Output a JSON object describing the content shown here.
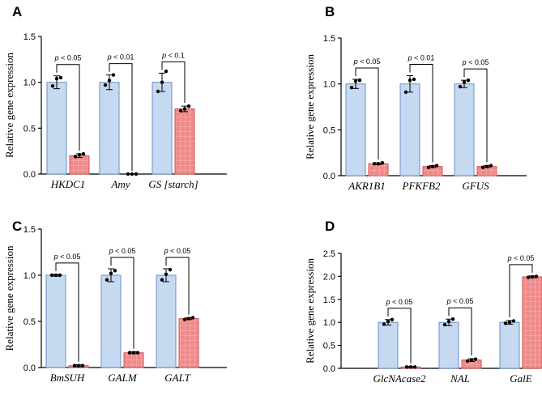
{
  "colors": {
    "control": "#c5d9f1",
    "control_edge": "#6c8fc7",
    "treated": "#f08a8a",
    "treated_edge": "#d9534f",
    "treated_grid": "#f8caca",
    "axis": "#000000",
    "bracket": "#000000"
  },
  "chart_data": [
    {
      "type": "bar",
      "panel": "A",
      "ylabel": "Relative gene expression",
      "ylim": [
        0,
        1.5
      ],
      "yticks": [
        "0.0",
        "0.5",
        "1.0",
        "1.5"
      ],
      "categories": [
        "HKDC1",
        "Amy",
        "GS [starch]"
      ],
      "series": [
        {
          "values": [
            1.0,
            1.0,
            1.0
          ],
          "errors": [
            0.07,
            0.08,
            0.1
          ],
          "points": [
            [
              0.96,
              1.04,
              1.05
            ],
            [
              0.97,
              1.02,
              1.08
            ],
            [
              0.9,
              1.0,
              1.12
            ]
          ]
        },
        {
          "values": [
            0.2,
            0.0,
            0.71
          ],
          "errors": [
            0.02,
            0.0,
            0.03
          ],
          "points": [
            [
              0.19,
              0.21,
              0.22
            ],
            [
              0.0,
              0.0,
              0.0
            ],
            [
              0.69,
              0.71,
              0.74
            ]
          ]
        }
      ],
      "annotations": [
        {
          "p": "p",
          "text": " < 0.05"
        },
        {
          "p": "p",
          "text": " < 0.01"
        },
        {
          "p": "p",
          "text": " < 0.1"
        }
      ]
    },
    {
      "type": "bar",
      "panel": "B",
      "ylabel": "Relative gene expression",
      "ylim": [
        0,
        1.5
      ],
      "yticks": [
        "0.0",
        "0.5",
        "1.0",
        "1.5"
      ],
      "categories": [
        "AKR1B1",
        "PFKFB2",
        "GFUS"
      ],
      "series": [
        {
          "values": [
            1.0,
            1.0,
            1.0
          ],
          "errors": [
            0.05,
            0.09,
            0.04
          ],
          "points": [
            [
              0.96,
              1.03,
              1.04
            ],
            [
              0.91,
              1.04,
              1.05
            ],
            [
              0.97,
              1.02,
              1.04
            ]
          ]
        },
        {
          "values": [
            0.13,
            0.1,
            0.1
          ],
          "errors": [
            0.01,
            0.01,
            0.01
          ],
          "points": [
            [
              0.13,
              0.13,
              0.14
            ],
            [
              0.09,
              0.1,
              0.11
            ],
            [
              0.09,
              0.1,
              0.11
            ]
          ]
        }
      ],
      "annotations": [
        {
          "p": "p",
          "text": " < 0.05"
        },
        {
          "p": "p",
          "text": " < 0.01"
        },
        {
          "p": "p",
          "text": " < 0.05"
        }
      ]
    },
    {
      "type": "bar",
      "panel": "C",
      "ylabel": "Relative gene expression",
      "ylim": [
        0,
        1.5
      ],
      "yticks": [
        "0.0",
        "0.5",
        "1.0",
        "1.5"
      ],
      "categories": [
        "BmSUH",
        "GALM",
        "GALT"
      ],
      "series": [
        {
          "values": [
            1.0,
            1.0,
            1.0
          ],
          "errors": [
            0.01,
            0.07,
            0.07
          ],
          "points": [
            [
              1.0,
              1.0,
              1.0
            ],
            [
              0.95,
              1.02,
              1.05
            ],
            [
              0.95,
              1.01,
              1.06
            ]
          ]
        },
        {
          "values": [
            0.02,
            0.16,
            0.53
          ],
          "errors": [
            0.01,
            0.01,
            0.01
          ],
          "points": [
            [
              0.02,
              0.02,
              0.02
            ],
            [
              0.16,
              0.16,
              0.16
            ],
            [
              0.52,
              0.53,
              0.54
            ]
          ]
        }
      ],
      "annotations": [
        {
          "p": "p",
          "text": " < 0.05"
        },
        {
          "p": "p",
          "text": " < 0.05"
        },
        {
          "p": "p",
          "text": " < 0.05"
        }
      ]
    },
    {
      "type": "bar",
      "panel": "D",
      "ylabel": "Relative gene expression",
      "ylim": [
        0,
        2.5
      ],
      "yticks": [
        "0.0",
        "0.5",
        "1.0",
        "1.5",
        "2.0",
        "2.5"
      ],
      "categories": [
        "GlcNAcase2",
        "NAL",
        "GalE"
      ],
      "series": [
        {
          "values": [
            1.0,
            1.0,
            1.0
          ],
          "errors": [
            0.06,
            0.07,
            0.04
          ],
          "points": [
            [
              0.96,
              1.02,
              1.06
            ],
            [
              0.95,
              1.02,
              1.07
            ],
            [
              0.98,
              1.0,
              1.03
            ]
          ]
        },
        {
          "values": [
            0.03,
            0.18,
            1.99
          ],
          "errors": [
            0.01,
            0.03,
            0.02
          ],
          "points": [
            [
              0.03,
              0.03,
              0.03
            ],
            [
              0.16,
              0.18,
              0.2
            ],
            [
              1.98,
              1.99,
              2.0
            ]
          ]
        }
      ],
      "annotations": [
        {
          "p": "p",
          "text": " < 0.05"
        },
        {
          "p": "p",
          "text": " < 0.05"
        },
        {
          "p": "p",
          "text": " < 0.05"
        }
      ]
    }
  ]
}
